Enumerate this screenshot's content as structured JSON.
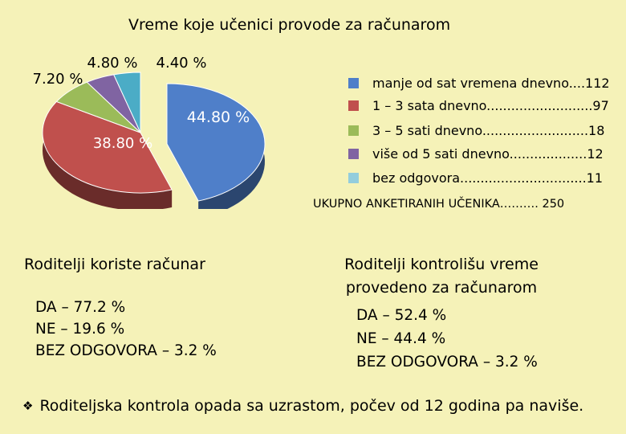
{
  "chart_data": {
    "type": "pie",
    "title": "Vreme koje učenici provode za računarom",
    "slices": [
      {
        "label": "44.80 %",
        "value": 44.8,
        "color": "#4f7fc9"
      },
      {
        "label": "38.80 %",
        "value": 38.8,
        "color": "#c0504d"
      },
      {
        "label": "7.20 %",
        "value": 7.2,
        "color": "#9bbb59"
      },
      {
        "label": "4.80 %",
        "value": 4.8,
        "color": "#8064a2"
      },
      {
        "label": "4.40 %",
        "value": 4.4,
        "color": "#4bacc6"
      }
    ],
    "legend": [
      {
        "text": "manje od sat vremena dnevno....112",
        "color": "#4f7fc9"
      },
      {
        "text": "1 – 3 sata dnevno..........................97",
        "color": "#c0504d"
      },
      {
        "text": "3 – 5 sati dnevno..........................18",
        "color": "#9bbb59"
      },
      {
        "text": "više od 5 sati dnevno...................12",
        "color": "#8064a2"
      },
      {
        "text": "bez odgovora...............................11",
        "color": "#93cddd"
      }
    ],
    "legend_position": "right",
    "total": "UKUPNO ANKETIRANIH UČENIKA………. 250"
  },
  "panels": {
    "left": {
      "title": "Roditelji koriste računar",
      "lines": [
        "DA – 77.2 %",
        "NE – 19.6 %",
        "BEZ ODGOVORA – 3.2 %"
      ]
    },
    "right": {
      "title_line1": "Roditelji kontrolišu vreme",
      "title_line2": "provedeno za računarom",
      "lines": [
        "DA – 52.4 %",
        "NE – 44.4 %",
        "BEZ ODGOVORA – 3.2 %"
      ]
    }
  },
  "footer": {
    "bullet_icon": "diamond-bullet-icon",
    "text": "Roditeljska kontrola opada sa uzrastom, počev od 12 godina pa naviše."
  }
}
